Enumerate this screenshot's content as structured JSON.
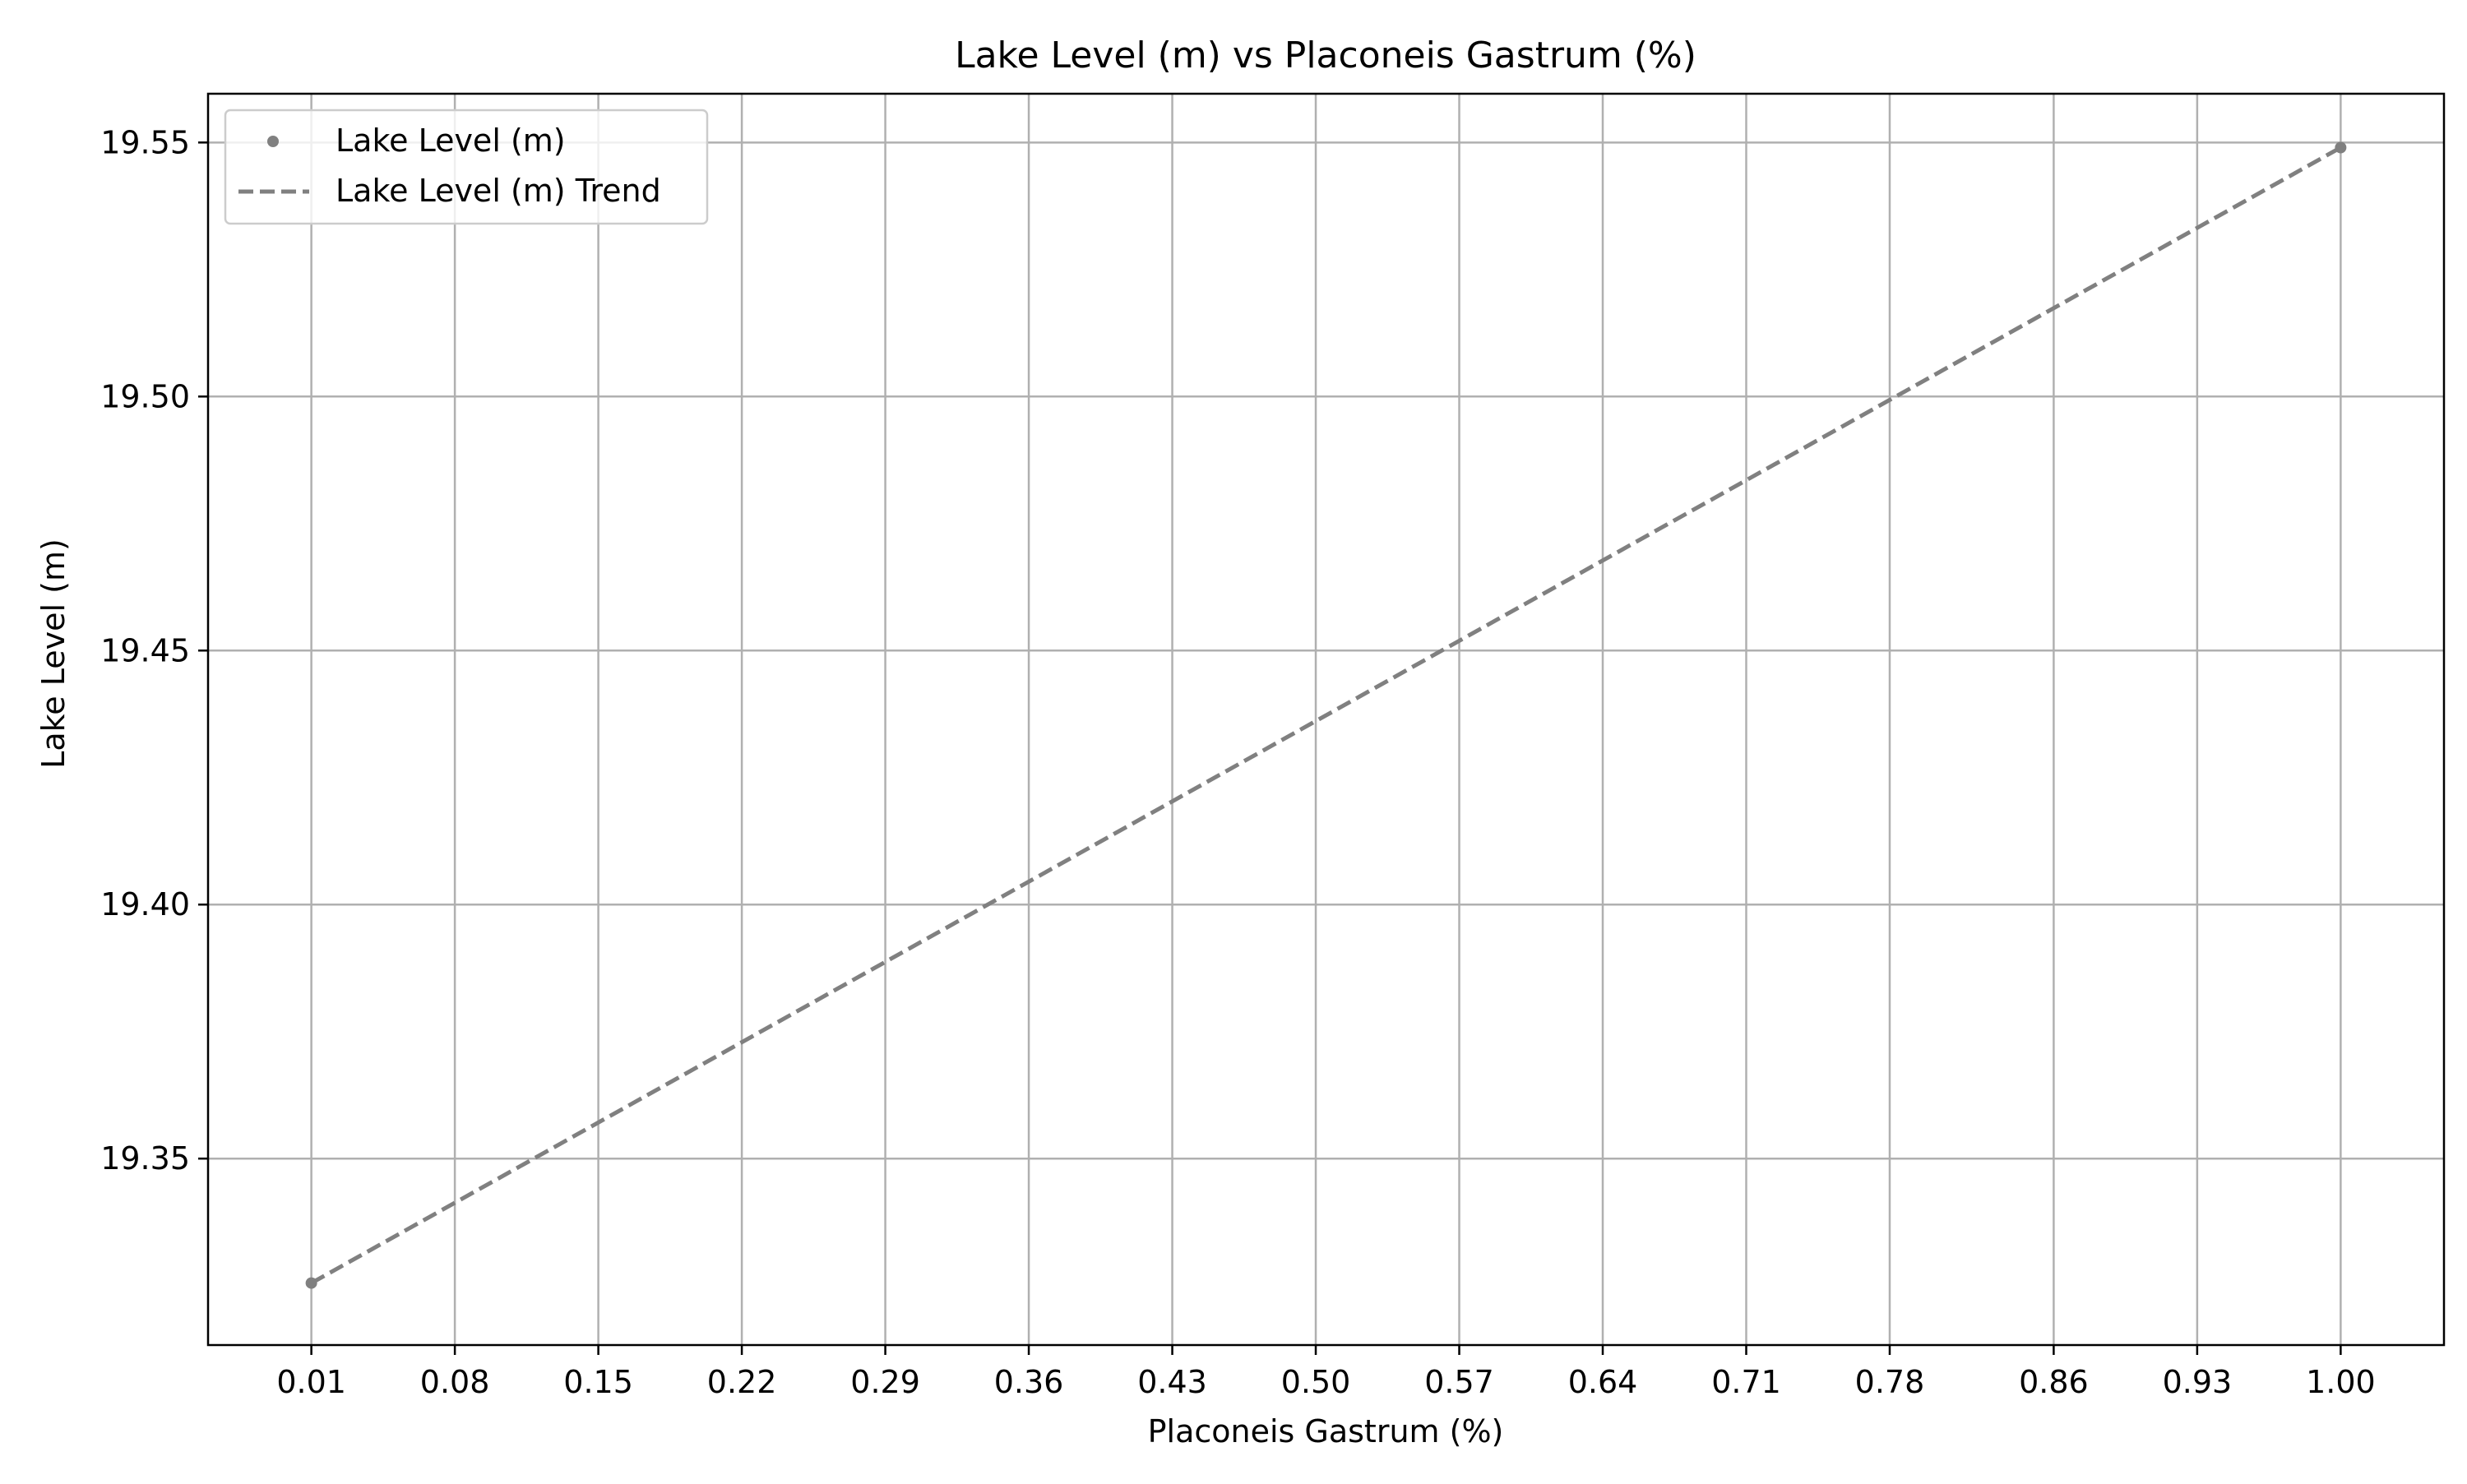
{
  "chart_data": {
    "type": "scatter",
    "title": "Lake Level (m) vs Placoneis Gastrum (%)",
    "xlabel": "Placoneis Gastrum (%)",
    "ylabel": "Lake Level (m)",
    "xlim": [
      -0.0404,
      1.0504
    ],
    "ylim": [
      19.3133,
      19.5596
    ],
    "x_ticks": [
      0.01,
      0.08,
      0.15,
      0.22,
      0.29,
      0.36,
      0.43,
      0.5,
      0.57,
      0.64,
      0.71,
      0.78,
      0.86,
      0.93,
      1.0
    ],
    "x_tick_labels": [
      "0.01",
      "0.08",
      "0.15",
      "0.22",
      "0.29",
      "0.36",
      "0.43",
      "0.50",
      "0.57",
      "0.64",
      "0.71",
      "0.78",
      "0.86",
      "0.93",
      "1.00"
    ],
    "y_ticks": [
      19.35,
      19.4,
      19.45,
      19.5,
      19.55
    ],
    "y_tick_labels": [
      "19.35",
      "19.40",
      "19.45",
      "19.50",
      "19.55"
    ],
    "grid": true,
    "legend_position": "top-left",
    "series": [
      {
        "name": "Lake Level (m)",
        "kind": "scatter",
        "color": "#808080",
        "points": [
          {
            "x": 0.01,
            "y": 19.3255
          },
          {
            "x": 1.0,
            "y": 19.549
          }
        ]
      },
      {
        "name": "Lake Level (m) Trend",
        "kind": "line",
        "style": "dashed",
        "color": "#808080",
        "points": [
          {
            "x": 0.01,
            "y": 19.3255
          },
          {
            "x": 1.0,
            "y": 19.549
          }
        ]
      }
    ]
  }
}
